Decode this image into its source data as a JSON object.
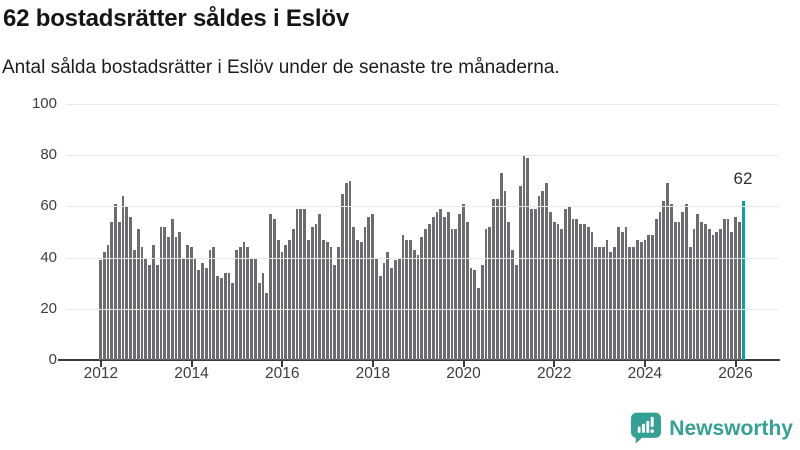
{
  "header": {
    "title": "62 bostadsrätter såldes i Eslöv",
    "subtitle": "Antal sålda bostadsrätter i Eslöv under de senaste tre månaderna."
  },
  "chart_data": {
    "type": "bar",
    "title": "62 bostadsrätter såldes i Eslöv",
    "subtitle": "Antal sålda bostadsrätter i Eslöv under de senaste tre månaderna.",
    "x_start": "2012-01",
    "x_interval": "month",
    "x_tick_labels": [
      "2012",
      "2014",
      "2016",
      "2018",
      "2020",
      "2022",
      "2024",
      "2026"
    ],
    "ylim": [
      0,
      100
    ],
    "y_ticks": [
      0,
      20,
      40,
      60,
      80,
      100
    ],
    "grid": "horizontal-only",
    "bar_color": "#6c6c70",
    "axis_color": "#3a3a3a",
    "grid_color": "#e7e7e7",
    "highlight": {
      "index": 170,
      "value": 62,
      "label": "62",
      "color": "#0d9fa2"
    },
    "series": [
      {
        "name": "Antal sålda bostadsrätter",
        "values": [
          39,
          42,
          45,
          54,
          61,
          54,
          64,
          60,
          56,
          43,
          51,
          44,
          40,
          37,
          45,
          37,
          52,
          52,
          48,
          55,
          48,
          50,
          40,
          45,
          44,
          40,
          35,
          38,
          36,
          43,
          44,
          33,
          32,
          34,
          34,
          30,
          43,
          44,
          46,
          44,
          40,
          40,
          30,
          34,
          26,
          57,
          55,
          47,
          42,
          45,
          47,
          51,
          59,
          59,
          59,
          47,
          52,
          53,
          57,
          47,
          46,
          44,
          37,
          44,
          65,
          69,
          70,
          52,
          47,
          46,
          52,
          56,
          57,
          40,
          33,
          38,
          42,
          36,
          39,
          40,
          49,
          47,
          47,
          43,
          41,
          48,
          51,
          53,
          56,
          58,
          59,
          56,
          58,
          51,
          51,
          57,
          61,
          54,
          36,
          35,
          28,
          37,
          51,
          52,
          63,
          63,
          73,
          66,
          54,
          43,
          37,
          68,
          80,
          79,
          59,
          59,
          64,
          66,
          69,
          58,
          54,
          53,
          51,
          59,
          60,
          55,
          55,
          53,
          53,
          52,
          50,
          44,
          44,
          44,
          47,
          42,
          44,
          52,
          50,
          52,
          44,
          44,
          47,
          46,
          47,
          49,
          49,
          55,
          58,
          62,
          69,
          61,
          54,
          54,
          58,
          61,
          44,
          51,
          57,
          54,
          53,
          51,
          49,
          50,
          51,
          55,
          55,
          50,
          56,
          54,
          62
        ]
      }
    ]
  },
  "footer": {
    "brand": "Newsworthy",
    "brand_color": "#35a195",
    "icon": "newsworthy-speech-bubble-chart-icon"
  }
}
